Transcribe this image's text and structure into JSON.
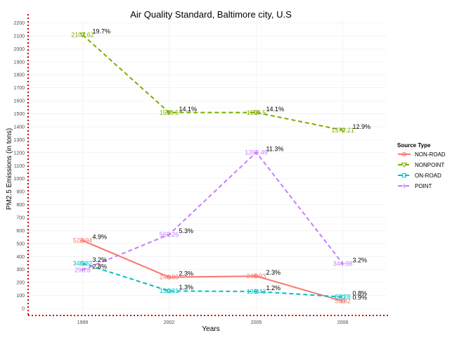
{
  "chart_data": {
    "type": "line",
    "title": "Air Quality Standard, Baltimore city, U.S",
    "xlabel": "Years",
    "ylabel": "PM2.5 Emissions (in tons)",
    "x": [
      "1999",
      "2002",
      "2005",
      "2008"
    ],
    "ylim": [
      0,
      2200
    ],
    "yticks": [
      0,
      100,
      200,
      300,
      400,
      500,
      600,
      700,
      800,
      900,
      1000,
      1100,
      1200,
      1300,
      1400,
      1500,
      1600,
      1700,
      1800,
      1900,
      2000,
      2100,
      2200
    ],
    "grid": true,
    "legend": {
      "title": "Source Type",
      "position": "right"
    },
    "series": [
      {
        "name": "NON-ROAD",
        "color": "#F8766D",
        "dash": "solid",
        "marker": "circle-line",
        "values": [
          522.94,
          240.85,
          248.93,
          55.82
        ],
        "value_labels": [
          "522.94",
          "240.85",
          "248.93",
          "55.82"
        ],
        "percent_labels": [
          "4.9%",
          "2.3%",
          "2.3%",
          "0.9%"
        ]
      },
      {
        "name": "NONPOINT",
        "color": "#7CAE00",
        "dash": "dashed",
        "marker": "triangle-down",
        "values": [
          2107.62,
          1509.5,
          1509.5,
          1373.21
        ],
        "value_labels": [
          "2107.62",
          "1509.5",
          "1509.5",
          "1373.21"
        ],
        "percent_labels": [
          "19.7%",
          "14.1%",
          "14.1%",
          "12.9%"
        ]
      },
      {
        "name": "ON-ROAD",
        "color": "#00BFC4",
        "dash": "dashed",
        "marker": "square-open",
        "values": [
          346.82,
          134.31,
          130.43,
          88.28
        ],
        "value_labels": [
          "346.82",
          "134.31",
          "130.43",
          "88.28"
        ],
        "percent_labels": [
          "3.2%",
          "1.3%",
          "1.2%",
          "0.8%"
        ]
      },
      {
        "name": "POINT",
        "color": "#C77CFF",
        "dash": "dashed",
        "marker": "plus",
        "values": [
          296.8,
          569.26,
          1202.49,
          344.98
        ],
        "value_labels": [
          "296.8",
          "569.26",
          "1202.49",
          "344.98"
        ],
        "percent_labels": [
          "2.8%",
          "5.3%",
          "11.3%",
          "3.2%"
        ]
      }
    ]
  }
}
